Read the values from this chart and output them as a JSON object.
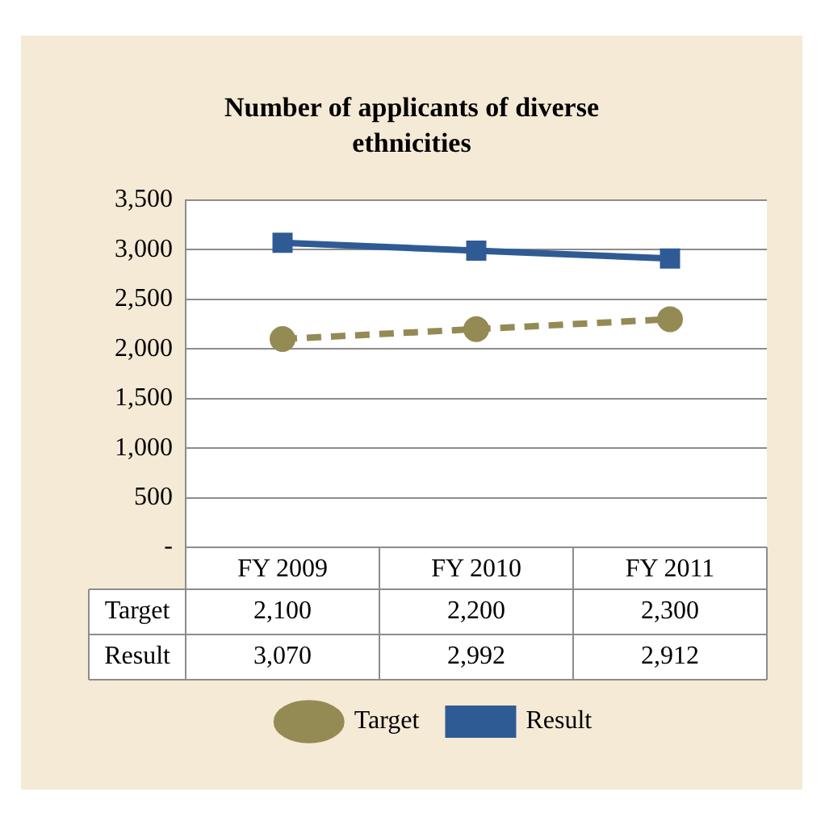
{
  "chart_data": {
    "type": "line",
    "title": "Number of applicants of diverse ethnicities",
    "categories": [
      "FY 2009",
      "FY 2010",
      "FY 2011"
    ],
    "series": [
      {
        "name": "Target",
        "color": "#948a54",
        "values": [
          2100,
          2200,
          2300
        ],
        "marker": "circle",
        "line_style": "dashed"
      },
      {
        "name": "Result",
        "color": "#2f5b94",
        "values": [
          3070,
          2992,
          2912
        ],
        "marker": "square",
        "line_style": "solid"
      }
    ],
    "ylim": [
      0,
      3500
    ],
    "yticks": [
      {
        "value": 0,
        "label": "-"
      },
      {
        "value": 500,
        "label": "500"
      },
      {
        "value": 1000,
        "label": "1,000"
      },
      {
        "value": 1500,
        "label": "1,500"
      },
      {
        "value": 2000,
        "label": "2,000"
      },
      {
        "value": 2500,
        "label": "2,500"
      },
      {
        "value": 3000,
        "label": "3,000"
      },
      {
        "value": 3500,
        "label": "3,500"
      }
    ],
    "value_labels": [
      [
        "2,100",
        "2,200",
        "2,300"
      ],
      [
        "3,070",
        "2,992",
        "2,912"
      ]
    ],
    "grid": "y",
    "legend": "bottom"
  }
}
